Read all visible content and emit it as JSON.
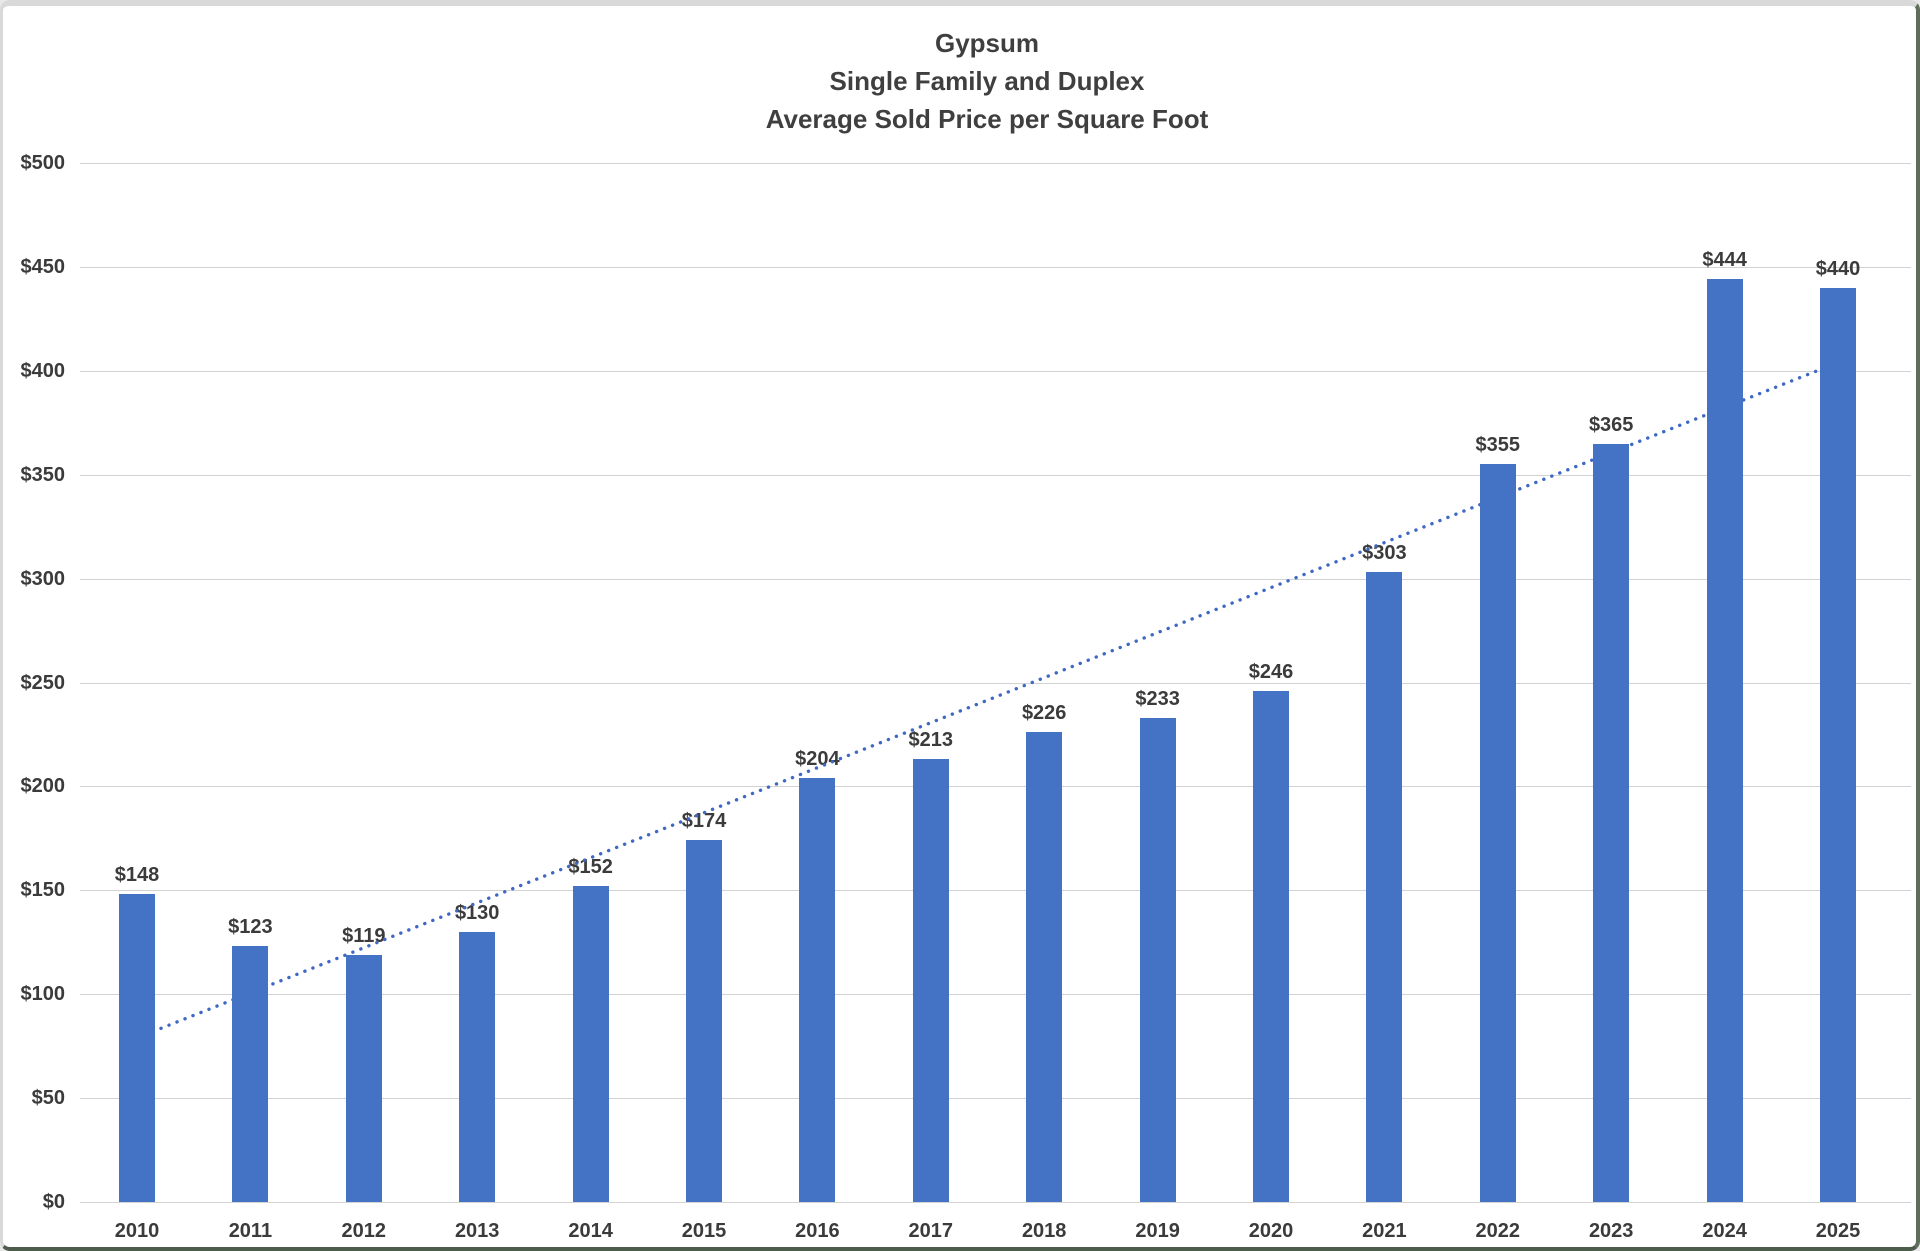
{
  "chart_data": {
    "type": "bar",
    "title_lines": [
      "Gypsum",
      "Single Family and Duplex",
      "Average Sold Price per Square Foot"
    ],
    "categories": [
      "2010",
      "2011",
      "2012",
      "2013",
      "2014",
      "2015",
      "2016",
      "2017",
      "2018",
      "2019",
      "2020",
      "2021",
      "2022",
      "2023",
      "2024",
      "2025"
    ],
    "values": [
      148,
      123,
      119,
      130,
      152,
      174,
      204,
      213,
      226,
      233,
      246,
      303,
      355,
      365,
      444,
      440
    ],
    "data_labels": [
      "$148",
      "$123",
      "$119",
      "$130",
      "$152",
      "$174",
      "$204",
      "$213",
      "$226",
      "$233",
      "$246",
      "$303",
      "$355",
      "$365",
      "$444",
      "$440"
    ],
    "xlabel": "",
    "ylabel": "",
    "ylim": [
      0,
      500
    ],
    "ytick_step": 50,
    "y_tick_labels": [
      "$0",
      "$50",
      "$100",
      "$150",
      "$200",
      "$250",
      "$300",
      "$350",
      "$400",
      "$450",
      "$500"
    ],
    "grid": true,
    "legend": "none",
    "trendline": {
      "style": "dotted",
      "start_value": 79,
      "end_value": 404
    }
  },
  "colors": {
    "bar_fill": "#4472C4",
    "trendline": "#3E68C4",
    "grid_line": "#D2D2D2",
    "text": "#3B3B3B",
    "title_text": "#3F3F3F",
    "background": "#FFFFFF"
  }
}
